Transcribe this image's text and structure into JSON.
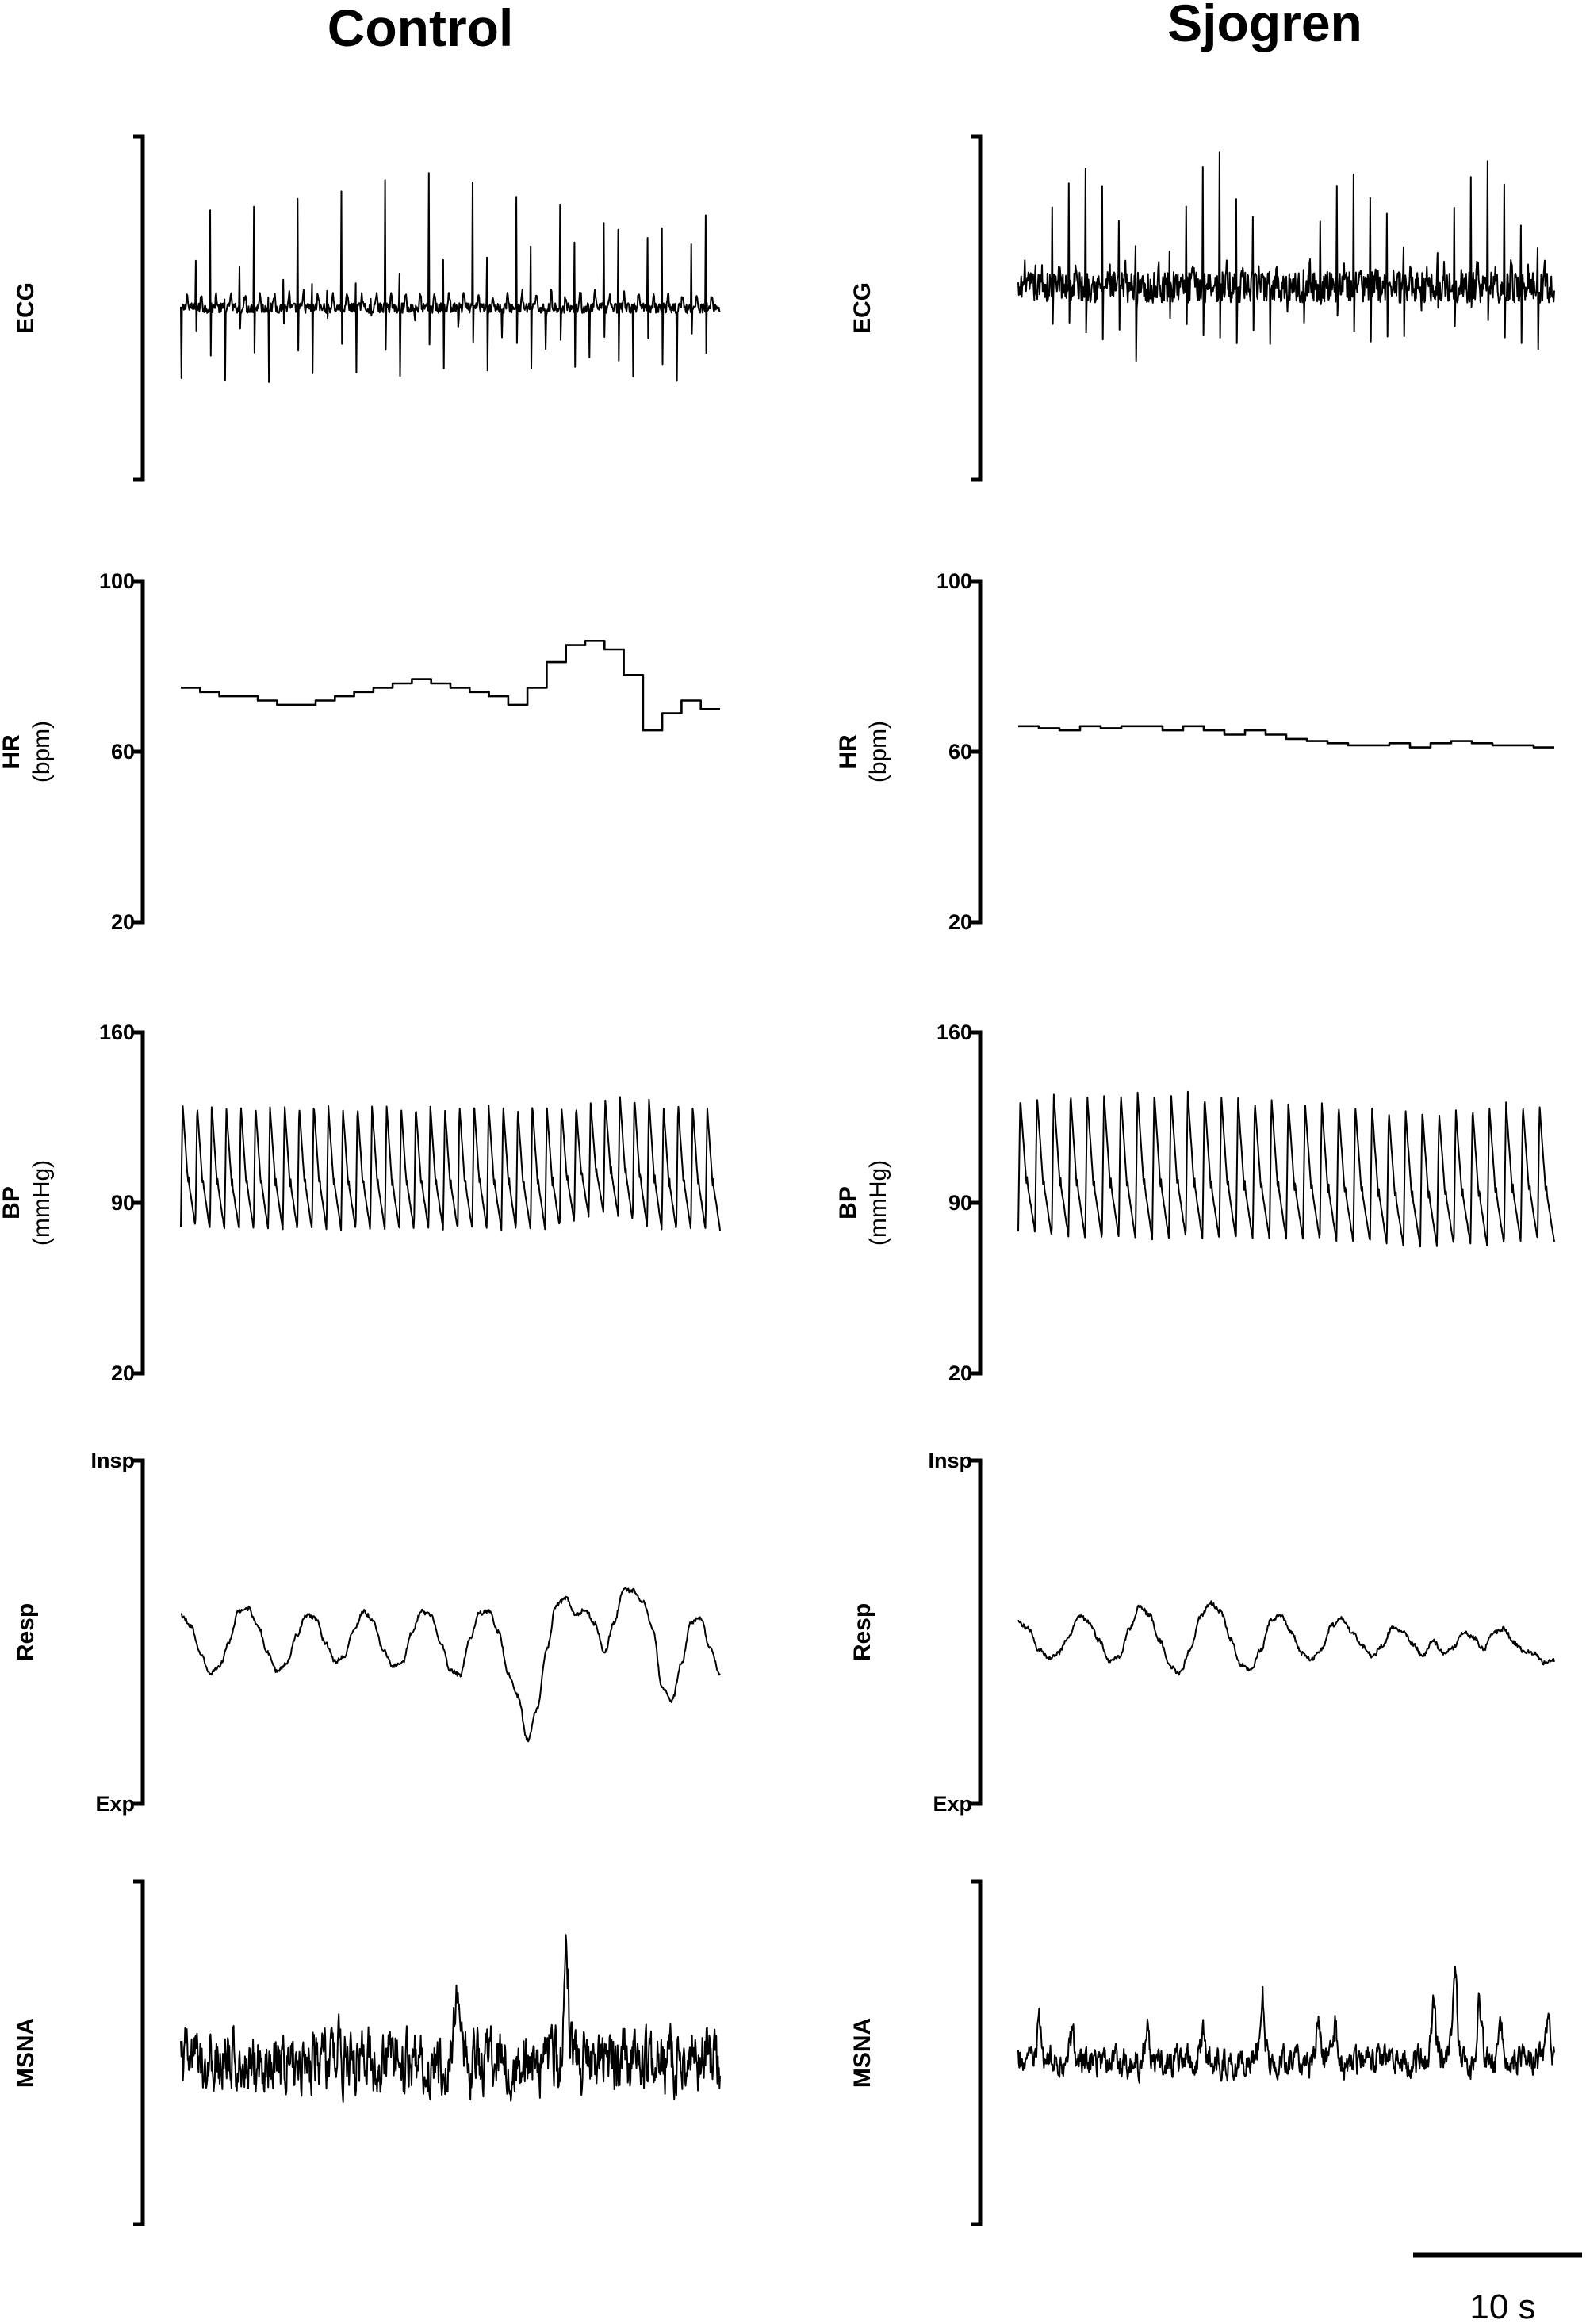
{
  "columns": [
    {
      "title": "Control"
    },
    {
      "title": "Sjogren"
    }
  ],
  "scale_bar": {
    "label": "10 s",
    "seconds": 10
  },
  "chart_data": [
    {
      "type": "line",
      "panel": "ECG",
      "column": "Control",
      "ylabel": "ECG",
      "ylabel2": "",
      "yticks": [],
      "ylim": [
        -1,
        1
      ],
      "beats": 37,
      "r_peak": 0.78,
      "s_trough": -0.45,
      "baseline": 0.0,
      "noise": 0.03
    },
    {
      "type": "line",
      "panel": "ECG",
      "column": "Sjogren",
      "ylabel": "ECG",
      "ylabel2": "",
      "yticks": [],
      "ylim": [
        -1,
        1
      ],
      "beats": 32,
      "r_peak": 0.8,
      "s_trough": -0.35,
      "baseline": 0.12,
      "noise": 0.09
    },
    {
      "type": "line",
      "panel": "HR",
      "column": "Control",
      "ylabel": "HR",
      "ylabel2": "(bpm)",
      "yticks": [
        "20",
        "60",
        "100"
      ],
      "ylim": [
        20,
        100
      ],
      "values": [
        75,
        74,
        73,
        73,
        72,
        71,
        71,
        72,
        73,
        74,
        75,
        76,
        77,
        76,
        75,
        74,
        73,
        71,
        75,
        81,
        85,
        86,
        84,
        78,
        65,
        69,
        72,
        70
      ]
    },
    {
      "type": "line",
      "panel": "HR",
      "column": "Sjogren",
      "ylabel": "HR",
      "ylabel2": "(bpm)",
      "yticks": [
        "20",
        "60",
        "100"
      ],
      "ylim": [
        20,
        100
      ],
      "values": [
        66,
        65.5,
        65,
        66,
        65.5,
        66,
        66,
        65,
        66,
        65,
        64,
        65,
        64,
        63,
        62.5,
        62,
        61.5,
        61.5,
        62,
        61,
        62,
        62.5,
        62,
        61.5,
        61.5,
        61
      ]
    },
    {
      "type": "line",
      "panel": "BP",
      "column": "Control",
      "ylabel": "BP",
      "ylabel2": "(mmHg)",
      "yticks": [
        "20",
        "90",
        "160"
      ],
      "ylim": [
        20,
        160
      ],
      "beats": 37,
      "systolic": [
        131,
        130,
        130,
        129,
        130,
        130,
        129,
        130,
        130,
        131,
        130,
        129,
        130,
        130,
        130,
        129,
        130,
        130,
        129,
        130,
        131,
        130,
        130,
        129,
        130,
        129,
        130,
        130,
        131,
        133,
        135,
        134,
        133,
        130,
        131,
        130,
        129
      ],
      "diastolic": [
        80,
        79,
        79,
        79,
        79,
        79,
        79,
        79,
        79,
        79,
        79,
        79,
        79,
        79,
        79,
        79,
        79,
        79,
        79,
        79,
        79,
        79,
        79,
        79,
        79,
        80,
        82,
        84,
        86,
        85,
        83,
        80,
        79,
        79,
        79,
        79,
        79
      ]
    },
    {
      "type": "line",
      "panel": "BP",
      "column": "Sjogren",
      "ylabel": "BP",
      "ylabel2": "(mmHg)",
      "yticks": [
        "20",
        "90",
        "160"
      ],
      "ylim": [
        20,
        160
      ],
      "beats": 32,
      "systolic": [
        133,
        134,
        135,
        135,
        134,
        134,
        135,
        136,
        135,
        135,
        136,
        134,
        134,
        133,
        132,
        133,
        132,
        131,
        131,
        130,
        130,
        129,
        128,
        128,
        128,
        127,
        128,
        129,
        130,
        131,
        130,
        130
      ],
      "diastolic": [
        78,
        76,
        76,
        75,
        75,
        76,
        75,
        75,
        75,
        76,
        75,
        75,
        75,
        75,
        75,
        75,
        75,
        75,
        74,
        74,
        74,
        73,
        72,
        72,
        72,
        73,
        73,
        72,
        73,
        74,
        75,
        74
      ]
    },
    {
      "type": "line",
      "panel": "Resp",
      "column": "Control",
      "ylabel": "Resp",
      "ylabel2": "",
      "yticks": [
        "Exp",
        "Insp"
      ],
      "ylim": [
        -1,
        1
      ],
      "values": [
        0.1,
        0.04,
        -0.12,
        -0.24,
        -0.2,
        -0.06,
        0.12,
        0.14,
        0.04,
        -0.12,
        -0.23,
        -0.18,
        -0.02,
        0.1,
        0.08,
        -0.06,
        -0.17,
        -0.14,
        0.02,
        0.12,
        0.06,
        -0.1,
        -0.2,
        -0.18,
        0.0,
        0.12,
        0.1,
        -0.06,
        -0.22,
        -0.25,
        -0.04,
        0.11,
        0.12,
        0.0,
        -0.24,
        -0.37,
        -0.63,
        -0.45,
        -0.1,
        0.16,
        0.2,
        0.1,
        0.13,
        0.05,
        -0.12,
        0.06,
        0.25,
        0.24,
        0.18,
        0.02,
        -0.32,
        -0.4,
        -0.18,
        0.06,
        0.08,
        -0.1,
        -0.25
      ]
    },
    {
      "type": "line",
      "panel": "Resp",
      "column": "Sjogren",
      "ylabel": "Resp",
      "ylabel2": "",
      "yticks": [
        "Exp",
        "Insp"
      ],
      "ylim": [
        -1,
        1
      ],
      "values": [
        0.06,
        0.02,
        -0.1,
        -0.15,
        -0.12,
        -0.03,
        0.1,
        0.06,
        -0.05,
        -0.17,
        -0.14,
        0.02,
        0.15,
        0.1,
        -0.05,
        -0.2,
        -0.24,
        -0.1,
        0.09,
        0.17,
        0.12,
        -0.04,
        -0.19,
        -0.22,
        -0.1,
        0.07,
        0.1,
        0.0,
        -0.12,
        -0.16,
        -0.1,
        0.04,
        0.08,
        0.0,
        -0.08,
        -0.14,
        -0.08,
        0.03,
        0.01,
        -0.07,
        -0.14,
        -0.05,
        -0.12,
        -0.09,
        0.0,
        -0.03,
        -0.1,
        0.0,
        0.02,
        -0.06,
        -0.11,
        -0.12,
        -0.18,
        -0.16
      ]
    },
    {
      "type": "line",
      "panel": "MSNA",
      "column": "Control",
      "ylabel": "MSNA",
      "ylabel2": "",
      "yticks": [],
      "ylim": [
        -1,
        1
      ],
      "baseline": -0.05,
      "noise": 0.1,
      "bursts": [
        {
          "t": 0.51,
          "amp": 0.33
        },
        {
          "t": 0.715,
          "amp": 0.62
        },
        {
          "t": 0.29,
          "amp": 0.12
        }
      ]
    },
    {
      "type": "line",
      "panel": "MSNA",
      "column": "Sjogren",
      "ylabel": "MSNA",
      "ylabel2": "",
      "yticks": [],
      "ylim": [
        -1,
        1
      ],
      "baseline": -0.05,
      "noise": 0.05,
      "bursts": [
        {
          "t": 0.04,
          "amp": 0.2
        },
        {
          "t": 0.1,
          "amp": 0.14
        },
        {
          "t": 0.24,
          "amp": 0.22
        },
        {
          "t": 0.345,
          "amp": 0.13
        },
        {
          "t": 0.455,
          "amp": 0.42
        },
        {
          "t": 0.56,
          "amp": 0.25
        },
        {
          "t": 0.59,
          "amp": 0.2
        },
        {
          "t": 0.775,
          "amp": 0.32
        },
        {
          "t": 0.815,
          "amp": 0.48
        },
        {
          "t": 0.86,
          "amp": 0.38
        },
        {
          "t": 0.9,
          "amp": 0.2
        },
        {
          "t": 0.99,
          "amp": 0.22
        }
      ]
    }
  ]
}
